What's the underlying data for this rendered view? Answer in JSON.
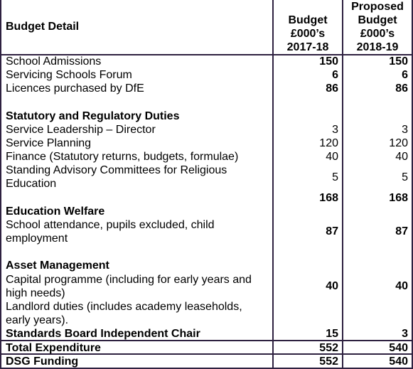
{
  "header": {
    "col_detail": "Budget Detail",
    "col_2017_lines": [
      "Budget",
      "£000’s",
      "2017-18"
    ],
    "col_2018_lines": [
      "Proposed",
      "Budget",
      "£000’s",
      "2018-19"
    ]
  },
  "rows": [
    {
      "label": "School Admissions",
      "v1": "150",
      "v2": "150"
    },
    {
      "label": "Servicing Schools Forum",
      "v1": "6",
      "v2": "6"
    },
    {
      "label": "Licences purchased by DfE",
      "v1": "86",
      "v2": "86"
    }
  ],
  "statutory": {
    "heading": "Statutory and Regulatory Duties",
    "items": [
      {
        "label": "Service Leadership – Director",
        "v1": "3",
        "v2": "3"
      },
      {
        "label": "Service Planning",
        "v1": "120",
        "v2": "120"
      },
      {
        "label": "Finance (Statutory returns, budgets, formulae)",
        "v1": "40",
        "v2": "40"
      },
      {
        "label_lines": [
          "Standing Advisory Committees for Religious",
          "Education"
        ],
        "v1": "5",
        "v2": "5"
      }
    ],
    "subtotal_v1": "168",
    "subtotal_v2": "168"
  },
  "education_welfare": {
    "heading": "Education Welfare",
    "label_lines": [
      "School attendance, pupils excluded, child",
      "employment"
    ],
    "v1": "87",
    "v2": "87"
  },
  "asset_management": {
    "heading": "Asset Management",
    "label_lines": [
      "Capital programme (including for early years and",
      "high needs)",
      "Landlord duties (includes academy leaseholds,",
      "early years)."
    ],
    "v1": "40",
    "v2": "40"
  },
  "standards_board": {
    "label": "Standards Board Independent Chair",
    "v1": "15",
    "v2": "3"
  },
  "total_expenditure": {
    "label": "Total Expenditure",
    "v1": "552",
    "v2": "540"
  },
  "dsg_funding": {
    "label": "DSG Funding",
    "v1": "552",
    "v2": "540"
  },
  "colors": {
    "border": "#2e2140",
    "text": "#000000",
    "background": "#ffffff"
  }
}
